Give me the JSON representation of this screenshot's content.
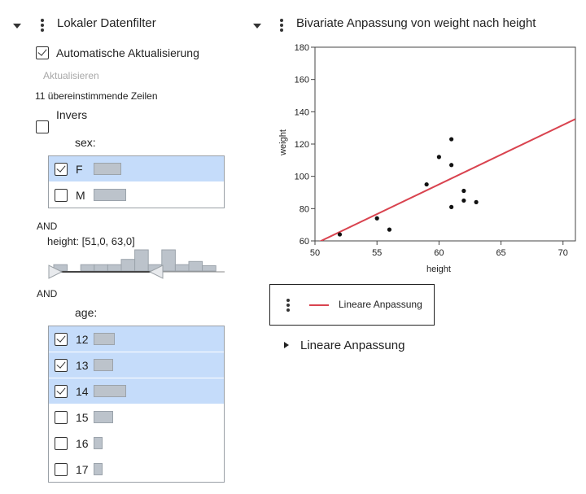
{
  "filter_panel": {
    "title": "Lokaler Datenfilter",
    "auto_update_label": "Automatische Aktualisierung",
    "update_button": "Aktualisieren",
    "match_count": "11 übereinstimmende Zeilen",
    "invert_label": "Invers",
    "sex": {
      "label": "sex:",
      "items": [
        {
          "label": "F",
          "selected": true,
          "bar_fraction": 1.0
        },
        {
          "label": "M",
          "selected": false,
          "bar_fraction": 1.18
        }
      ]
    },
    "and_1": "AND",
    "height": {
      "label": "height: [51,0, 63,0]",
      "histogram": [
        0.3,
        0,
        0.3,
        0.3,
        0.3,
        0.55,
        1.0,
        0.3,
        1.0,
        0.3,
        0.45,
        0.25
      ]
    },
    "and_2": "AND",
    "age": {
      "label": "age:",
      "items": [
        {
          "label": "12",
          "selected": true,
          "bar_fraction": 0.65
        },
        {
          "label": "13",
          "selected": true,
          "bar_fraction": 0.6
        },
        {
          "label": "14",
          "selected": true,
          "bar_fraction": 1.0
        },
        {
          "label": "15",
          "selected": false,
          "bar_fraction": 0.6
        },
        {
          "label": "16",
          "selected": false,
          "bar_fraction": 0.27
        },
        {
          "label": "17",
          "selected": false,
          "bar_fraction": 0.27
        }
      ]
    }
  },
  "report": {
    "title": "Bivariate Anpassung von weight nach height",
    "legend_label": "Lineare Anpassung",
    "outline_title": "Lineare Anpassung",
    "line_color": "#d9434f"
  },
  "chart_data": {
    "type": "scatter",
    "xlabel": "height",
    "ylabel": "weight",
    "xlim": [
      50,
      71
    ],
    "ylim": [
      60,
      180
    ],
    "xticks": [
      50,
      55,
      60,
      65,
      70
    ],
    "yticks": [
      60,
      80,
      100,
      120,
      140,
      160,
      180
    ],
    "points": [
      [
        52,
        64
      ],
      [
        55,
        74
      ],
      [
        56,
        67
      ],
      [
        59,
        95
      ],
      [
        60,
        112
      ],
      [
        61,
        123
      ],
      [
        61,
        107
      ],
      [
        61,
        81
      ],
      [
        62,
        91
      ],
      [
        62,
        85
      ],
      [
        63,
        84
      ]
    ],
    "fit_line": {
      "x": [
        50.3,
        71
      ],
      "y": [
        59.3,
        135.5
      ]
    }
  }
}
